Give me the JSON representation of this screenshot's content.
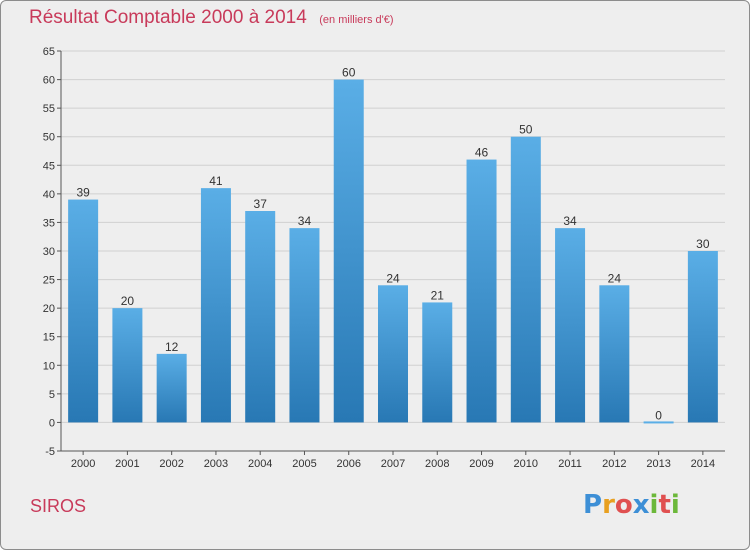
{
  "chart_data": {
    "type": "bar",
    "title": "Résultat Comptable 2000 à 2014",
    "subtitle": "(en milliers d'€)",
    "categories": [
      "2000",
      "2001",
      "2002",
      "2003",
      "2004",
      "2005",
      "2006",
      "2007",
      "2008",
      "2009",
      "2010",
      "2011",
      "2012",
      "2013",
      "2014"
    ],
    "values": [
      39,
      20,
      12,
      41,
      37,
      34,
      60,
      24,
      21,
      46,
      50,
      34,
      24,
      0,
      30
    ],
    "yticks": [
      -5,
      0,
      5,
      10,
      15,
      20,
      25,
      30,
      35,
      40,
      45,
      50,
      55,
      60,
      65
    ],
    "ylim": [
      -5,
      65
    ],
    "xlabel": "",
    "ylabel": "",
    "grid": true,
    "bar_color_top": "#5aaee6",
    "bar_color_bottom": "#2878b4"
  },
  "commune": "SIROS",
  "brand": {
    "letters": [
      "P",
      "r",
      "o",
      "x",
      "i",
      "t",
      "i"
    ],
    "colors": [
      "#3d8fd6",
      "#e8a020",
      "#e05050",
      "#3d8fd6",
      "#6cb83a",
      "#e05050",
      "#6cb83a"
    ]
  },
  "colors": {
    "accent": "#c83a5a",
    "background": "#eeeeee"
  }
}
